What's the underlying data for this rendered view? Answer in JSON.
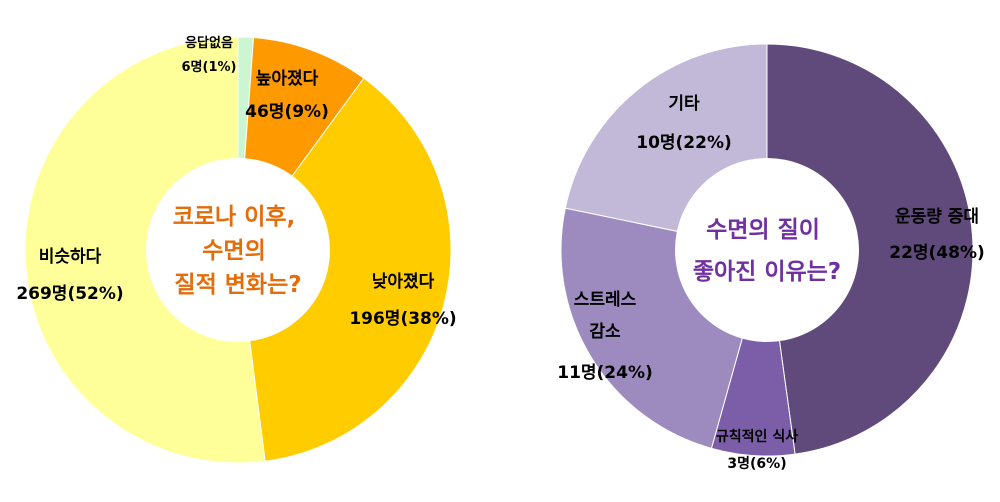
{
  "chart_data": [
    {
      "type": "pie",
      "center_text": [
        "코로나 이후,",
        "수면의",
        "질적 변화는?"
      ],
      "center_text_color": "#E46C0A",
      "start_angle_deg": 0,
      "slices": [
        {
          "name": "응답없음",
          "count": 6,
          "count_label": "6명(1%)",
          "percent": 1,
          "color": "#CCF5D1"
        },
        {
          "name": "높아졌다",
          "count": 46,
          "count_label": "46명(9%)",
          "percent": 9,
          "color": "#FF9900"
        },
        {
          "name": "낮아졌다",
          "count": 196,
          "count_label": "196명(38%)",
          "percent": 38,
          "color": "#FFCC00"
        },
        {
          "name": "비슷하다",
          "count": 269,
          "count_label": "269명(52%)",
          "percent": 52,
          "color": "#FFFF99"
        }
      ]
    },
    {
      "type": "pie",
      "center_text": [
        "수면의 질이",
        "좋아진 이유는?"
      ],
      "center_text_color": "#7030A0",
      "start_angle_deg": 0,
      "slices": [
        {
          "name": "운동량 증대",
          "count": 22,
          "count_label": "22명(48%)",
          "percent": 48,
          "color": "#604A7B"
        },
        {
          "name": "규칙적인 식사",
          "count": 3,
          "count_label": "3명(6%)",
          "percent": 6,
          "color": "#7B5EA7"
        },
        {
          "name": "스트레스 감소",
          "name_lines": [
            "스트레스",
            "감소"
          ],
          "count": 11,
          "count_label": "11명(24%)",
          "percent": 24,
          "color": "#9D8BC0"
        },
        {
          "name": "기타",
          "count": 10,
          "count_label": "10명(22%)",
          "percent": 22,
          "color": "#C2B8D8"
        }
      ]
    }
  ]
}
